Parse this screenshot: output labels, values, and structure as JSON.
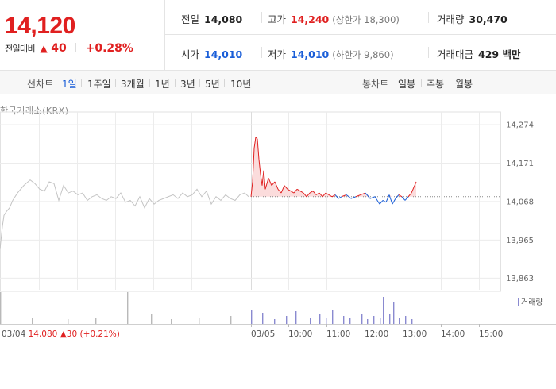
{
  "header": {
    "current_price": "14,120",
    "change_label": "전일대비",
    "change_arrow": "▲",
    "change_value": "40",
    "change_rate": "+0.28%",
    "stats": {
      "prev_close": {
        "label": "전일",
        "value": "14,080"
      },
      "high": {
        "label": "고가",
        "value": "14,240",
        "limit": "(상한가 18,300)"
      },
      "volume": {
        "label": "거래량",
        "value": "30,470"
      },
      "open": {
        "label": "시가",
        "value": "14,010"
      },
      "low": {
        "label": "저가",
        "value": "14,010",
        "limit": "(하한가 9,860)"
      },
      "amount": {
        "label": "거래대금",
        "value": "429 백만"
      }
    }
  },
  "toolbar": {
    "line_chart_label": "선차트",
    "line_periods": [
      "1일",
      "1주일",
      "3개월",
      "1년",
      "3년",
      "5년",
      "10년"
    ],
    "active_period": "1일",
    "candle_chart_label": "봉차트",
    "candle_periods": [
      "일봉",
      "주봉",
      "월봉"
    ]
  },
  "source_label": "한국거래소(KRX)",
  "volume_legend": "거래량",
  "footer": {
    "date": "03/04",
    "price": "14,080",
    "arrow": "▲",
    "change": "30",
    "rate": "(+0.21%)"
  },
  "colors": {
    "up": "#e02020",
    "down": "#1a5ed8",
    "prev_day_line": "#c4c4c4",
    "volume_bar": "#8a8ad0"
  },
  "chart_data": {
    "type": "line",
    "y_ticks": [
      "14,274",
      "14,171",
      "14,068",
      "13,965",
      "13,863"
    ],
    "y_tick_values": [
      14274,
      14171,
      14068,
      13965,
      13863
    ],
    "ylim": [
      13852,
      14290
    ],
    "x_ticks": [
      "03/04",
      "03/05",
      "10:00",
      "11:00",
      "12:00",
      "13:00",
      "14:00",
      "15:00"
    ],
    "baseline": 14080,
    "grid": true,
    "legend": "bottom-right",
    "series": [
      {
        "label": "03/04",
        "role": "prev_day",
        "t": [
          0,
          3,
          5,
          8,
          12,
          16,
          22,
          30,
          38,
          44,
          50,
          56,
          62,
          68,
          74,
          80,
          86,
          92,
          98,
          104,
          110,
          116,
          122,
          128,
          134,
          140,
          146,
          152,
          158,
          164,
          170,
          176,
          182,
          188,
          194,
          200,
          206,
          212,
          218,
          224,
          230,
          236,
          242,
          248,
          254,
          260,
          266,
          272,
          278,
          284,
          290,
          296,
          302,
          308,
          313
        ],
        "price": [
          13940,
          14000,
          14030,
          14040,
          14050,
          14070,
          14090,
          14110,
          14125,
          14115,
          14100,
          14095,
          14120,
          14115,
          14070,
          14110,
          14090,
          14095,
          14085,
          14090,
          14070,
          14080,
          14085,
          14075,
          14070,
          14080,
          14075,
          14090,
          14065,
          14070,
          14055,
          14080,
          14050,
          14075,
          14060,
          14070,
          14075,
          14080,
          14085,
          14075,
          14090,
          14080,
          14085,
          14100,
          14080,
          14095,
          14060,
          14080,
          14070,
          14085,
          14075,
          14070,
          14085,
          14090,
          14080
        ]
      },
      {
        "label": "03/05",
        "role": "today",
        "t": [
          316,
          318,
          320,
          322,
          324,
          326,
          328,
          330,
          332,
          334,
          338,
          342,
          346,
          350,
          354,
          358,
          362,
          366,
          370,
          374,
          378,
          382,
          386,
          390,
          394,
          398,
          402,
          406,
          410,
          414,
          418,
          422,
          426,
          430,
          436,
          442,
          448,
          454,
          460,
          466,
          472,
          478,
          482,
          486,
          490,
          494,
          498,
          502,
          506,
          510,
          514,
          518,
          522,
          524
        ],
        "price": [
          14080,
          14120,
          14210,
          14240,
          14235,
          14180,
          14140,
          14110,
          14150,
          14100,
          14130,
          14110,
          14120,
          14100,
          14090,
          14110,
          14100,
          14095,
          14090,
          14100,
          14095,
          14090,
          14080,
          14090,
          14095,
          14085,
          14090,
          14080,
          14090,
          14085,
          14080,
          14085,
          14075,
          14080,
          14085,
          14075,
          14080,
          14085,
          14090,
          14075,
          14080,
          14060,
          14070,
          14065,
          14085,
          14060,
          14075,
          14085,
          14080,
          14070,
          14080,
          14090,
          14110,
          14120
        ]
      }
    ],
    "volume": {
      "t": [
        0,
        40,
        85,
        120,
        160,
        190,
        215,
        250,
        290,
        316,
        330,
        345,
        360,
        372,
        390,
        402,
        410,
        418,
        432,
        440,
        455,
        462,
        470,
        478,
        482,
        490,
        495,
        502,
        510,
        518
      ],
      "value": [
        1.0,
        0.2,
        0.15,
        0.2,
        1.0,
        0.3,
        0.15,
        0.2,
        0.25,
        0.45,
        0.35,
        0.15,
        0.25,
        0.4,
        0.2,
        0.3,
        0.2,
        0.45,
        0.25,
        0.2,
        0.3,
        0.15,
        0.25,
        0.2,
        0.85,
        0.3,
        0.7,
        0.2,
        0.25,
        0.15
      ]
    }
  }
}
